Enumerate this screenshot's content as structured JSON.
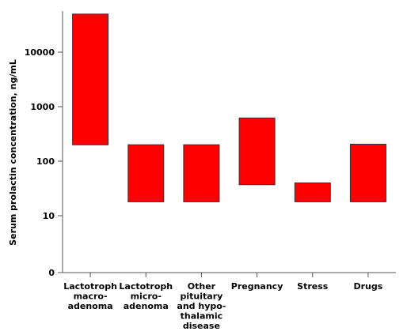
{
  "chart_data": {
    "type": "bar",
    "subtype": "floating-range",
    "ylabel": "Serum prolactin concentration, ng/mL",
    "xlabel": "",
    "title": "",
    "yscale": "log",
    "y_ticks": [
      "0",
      "10",
      "100",
      "1000",
      "10000"
    ],
    "ylim": [
      0,
      50000
    ],
    "grid": false,
    "legend": "none",
    "bar_color": "#ff0000",
    "bar_edge_color": "#333333",
    "categories": [
      {
        "label_lines": [
          "Lactotroph",
          "macro-",
          "adenoma"
        ],
        "low": 200,
        "high": 50000
      },
      {
        "label_lines": [
          "Lactotroph",
          "micro-",
          "adenoma"
        ],
        "low": 18,
        "high": 200
      },
      {
        "label_lines": [
          "Other",
          "pituitary",
          "and hypo-",
          "thalamic",
          "disease"
        ],
        "low": 18,
        "high": 200
      },
      {
        "label_lines": [
          "Pregnancy"
        ],
        "low": 37,
        "high": 620
      },
      {
        "label_lines": [
          "Stress"
        ],
        "low": 18,
        "high": 40
      },
      {
        "label_lines": [
          "Drugs"
        ],
        "low": 18,
        "high": 205
      }
    ]
  }
}
